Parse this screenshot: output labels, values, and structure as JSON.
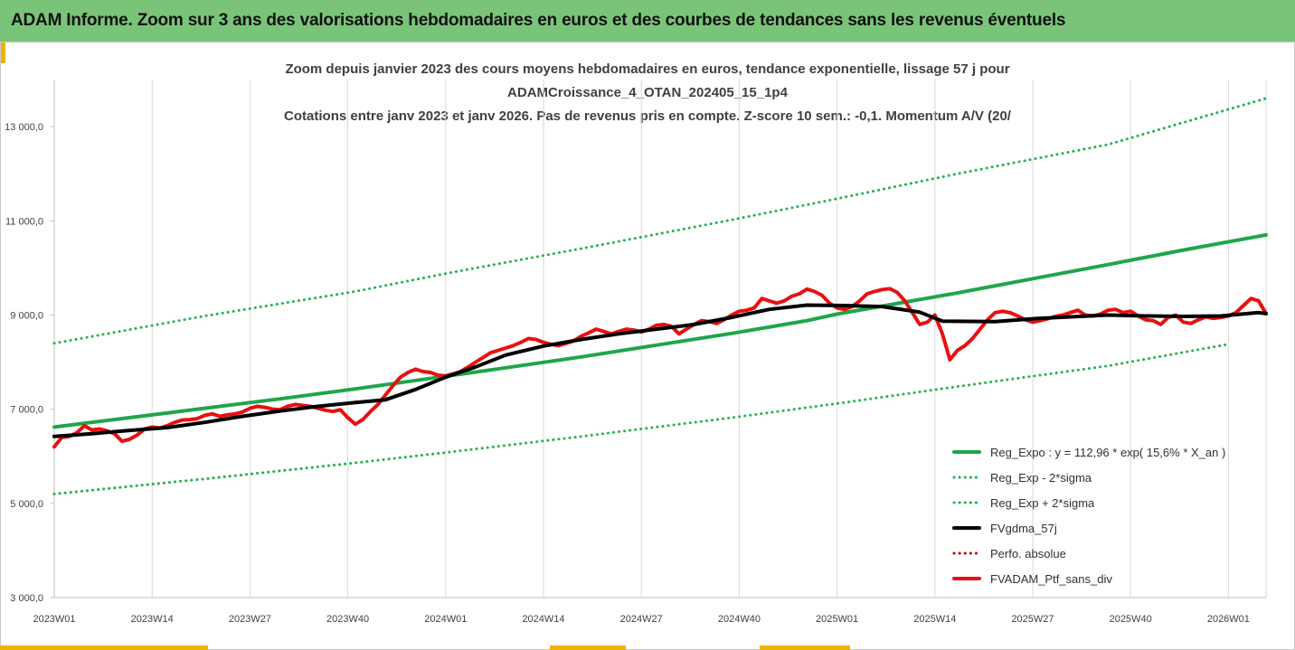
{
  "banner": {
    "title": "ADAM Informe. Zoom sur 3 ans des valorisations hebdomadaires en euros et des courbes de tendances sans les revenus éventuels"
  },
  "colors": {
    "banner_bg": "#7ac47a",
    "accent": "#f0b400",
    "reg_expo": "#1fa64a",
    "bands": "#22b050",
    "fvgdma": "#000000",
    "perfo": "#c00000",
    "fvadam": "#e81010"
  },
  "chart_data": {
    "type": "line",
    "title_lines": [
      "Zoom depuis janvier 2023 des cours moyens hebdomadaires  en euros, tendance exponentielle, lissage 57 j pour",
      "ADAMCroissance_4_OTAN_202405_15_1p4",
      "Cotations entre janv 2023 et janv 2026. Pas de revenus pris en compte. Z-score 10 sem.: -0,1. Momentum A/V (20/"
    ],
    "x_unit": "weeks since 2023W01",
    "x_range": [
      0,
      161
    ],
    "x_ticks": [
      {
        "x": 0,
        "label": "2023W01"
      },
      {
        "x": 13,
        "label": "2023W14"
      },
      {
        "x": 26,
        "label": "2023W27"
      },
      {
        "x": 39,
        "label": "2023W40"
      },
      {
        "x": 52,
        "label": "2024W01"
      },
      {
        "x": 65,
        "label": "2024W14"
      },
      {
        "x": 78,
        "label": "2024W27"
      },
      {
        "x": 91,
        "label": "2024W40"
      },
      {
        "x": 104,
        "label": "2025W01"
      },
      {
        "x": 117,
        "label": "2025W14"
      },
      {
        "x": 130,
        "label": "2025W27"
      },
      {
        "x": 143,
        "label": "2025W40"
      },
      {
        "x": 156,
        "label": "2026W01"
      }
    ],
    "y_ticks": [
      {
        "value": 3000,
        "label": "3 000,0"
      },
      {
        "value": 5000,
        "label": "5 000,0"
      },
      {
        "value": 7000,
        "label": "7 000,0"
      },
      {
        "value": 9000,
        "label": "9 000,0"
      },
      {
        "value": 11000,
        "label": "11 000,0"
      },
      {
        "value": 13000,
        "label": "13 000,0"
      }
    ],
    "ylim": [
      3000,
      14000
    ],
    "grid": "vertical",
    "legend_position": "bottom-right",
    "series": [
      {
        "name": "Reg_Expo : y = 112,96 * exp( 15,6% *  X_an )",
        "style": "solid",
        "color": "#1fa64a",
        "width": 4,
        "x": [
          0,
          10,
          20,
          30,
          40,
          52,
          60,
          70,
          80,
          90,
          100,
          104,
          110,
          120,
          130,
          140,
          150,
          161
        ],
        "y": [
          6620,
          6820,
          7020,
          7220,
          7430,
          7700,
          7880,
          8110,
          8360,
          8610,
          8880,
          9020,
          9190,
          9470,
          9770,
          10070,
          10380,
          10700
        ]
      },
      {
        "name": "Reg_Exp - 2*sigma",
        "style": "dotted",
        "color": "#22b050",
        "width": 3,
        "x": [
          0,
          20,
          40,
          52,
          70,
          90,
          104,
          120,
          140,
          156
        ],
        "y": [
          5200,
          5520,
          5860,
          6080,
          6420,
          6820,
          7120,
          7480,
          7920,
          8380
        ]
      },
      {
        "name": "Reg_Exp + 2*sigma",
        "style": "dotted",
        "color": "#22b050",
        "width": 3,
        "x": [
          0,
          20,
          40,
          52,
          70,
          90,
          104,
          120,
          140,
          161
        ],
        "y": [
          8400,
          8980,
          9500,
          9880,
          10410,
          11020,
          11470,
          12000,
          12620,
          13600
        ]
      },
      {
        "name": "FVgdma_57j",
        "style": "solid",
        "color": "#000000",
        "width": 4,
        "x": [
          0,
          5,
          10,
          15,
          20,
          25,
          30,
          35,
          40,
          44,
          48,
          52,
          56,
          60,
          65,
          70,
          75,
          80,
          85,
          90,
          95,
          100,
          105,
          110,
          115,
          118,
          125,
          130,
          135,
          140,
          145,
          150,
          155,
          160,
          161
        ],
        "y": [
          6420,
          6480,
          6550,
          6610,
          6720,
          6850,
          6960,
          7060,
          7140,
          7200,
          7420,
          7680,
          7900,
          8150,
          8340,
          8480,
          8600,
          8700,
          8800,
          8950,
          9120,
          9210,
          9200,
          9180,
          9060,
          8870,
          8860,
          8920,
          8960,
          9000,
          8980,
          8970,
          8980,
          9050,
          9030
        ]
      },
      {
        "name": "Perfo. absolue",
        "style": "dotted",
        "color": "#c00000",
        "width": 3,
        "x": [],
        "y": []
      },
      {
        "name": "FVADAM_Ptf_sans_div",
        "style": "solid",
        "color": "#e81010",
        "width": 4,
        "x": [
          0,
          1,
          2,
          3,
          4,
          5,
          6,
          7,
          8,
          9,
          10,
          11,
          12,
          13,
          14,
          15,
          16,
          17,
          18,
          19,
          20,
          21,
          22,
          23,
          24,
          25,
          26,
          27,
          28,
          29,
          30,
          31,
          32,
          33,
          34,
          35,
          36,
          37,
          38,
          39,
          40,
          41,
          42,
          43,
          44,
          45,
          46,
          47,
          48,
          49,
          50,
          51,
          52,
          53,
          54,
          55,
          56,
          57,
          58,
          59,
          60,
          61,
          62,
          63,
          64,
          65,
          66,
          67,
          68,
          69,
          70,
          71,
          72,
          73,
          74,
          75,
          76,
          77,
          78,
          79,
          80,
          81,
          82,
          83,
          84,
          85,
          86,
          87,
          88,
          89,
          90,
          91,
          92,
          93,
          94,
          95,
          96,
          97,
          98,
          99,
          100,
          101,
          102,
          103,
          104,
          105,
          106,
          107,
          108,
          109,
          110,
          111,
          112,
          113,
          114,
          115,
          116,
          117,
          118,
          119,
          120,
          121,
          122,
          123,
          124,
          125,
          126,
          127,
          128,
          129,
          130,
          131,
          132,
          133,
          134,
          135,
          136,
          137,
          138,
          139,
          140,
          141,
          142,
          143,
          144,
          145,
          146,
          147,
          148,
          149,
          150,
          151,
          152,
          153,
          154,
          155,
          156,
          157,
          158,
          159,
          160,
          161
        ],
        "y": [
          6200,
          6400,
          6420,
          6500,
          6650,
          6560,
          6580,
          6540,
          6480,
          6320,
          6360,
          6450,
          6580,
          6620,
          6600,
          6650,
          6720,
          6770,
          6780,
          6800,
          6870,
          6900,
          6850,
          6880,
          6900,
          6940,
          7020,
          7060,
          7040,
          7000,
          6990,
          7060,
          7100,
          7080,
          7060,
          7020,
          6980,
          6950,
          6990,
          6820,
          6680,
          6780,
          6950,
          7100,
          7300,
          7500,
          7680,
          7780,
          7850,
          7800,
          7780,
          7720,
          7710,
          7750,
          7800,
          7900,
          8000,
          8100,
          8200,
          8250,
          8300,
          8350,
          8420,
          8500,
          8480,
          8420,
          8380,
          8350,
          8400,
          8450,
          8550,
          8620,
          8700,
          8650,
          8600,
          8650,
          8700,
          8680,
          8640,
          8700,
          8780,
          8800,
          8760,
          8600,
          8700,
          8800,
          8880,
          8860,
          8820,
          8900,
          9000,
          9080,
          9100,
          9150,
          9350,
          9300,
          9250,
          9300,
          9400,
          9450,
          9550,
          9500,
          9420,
          9250,
          9150,
          9120,
          9180,
          9300,
          9450,
          9500,
          9540,
          9560,
          9480,
          9300,
          9050,
          8800,
          8850,
          9000,
          8600,
          8050,
          8250,
          8350,
          8500,
          8700,
          8900,
          9050,
          9080,
          9050,
          8980,
          8900,
          8850,
          8880,
          8920,
          8970,
          9000,
          9050,
          9100,
          9000,
          8980,
          9020,
          9100,
          9120,
          9050,
          9080,
          8980,
          8900,
          8880,
          8800,
          8950,
          9000,
          8850,
          8820,
          8900,
          8960,
          8930,
          8950,
          8980,
          9050,
          9200,
          9350,
          9300,
          9030
        ]
      }
    ],
    "legend": [
      {
        "label": "Reg_Expo : y = 112,96 * exp( 15,6% *  X_an )",
        "style": "solid",
        "color": "#1fa64a"
      },
      {
        "label": "Reg_Exp - 2*sigma",
        "style": "dotted",
        "color": "#22b050"
      },
      {
        "label": "Reg_Exp + 2*sigma",
        "style": "dotted",
        "color": "#22b050"
      },
      {
        "label": "FVgdma_57j",
        "style": "solid",
        "color": "#000000"
      },
      {
        "label": "Perfo. absolue",
        "style": "dotted",
        "color": "#c00000"
      },
      {
        "label": "FVADAM_Ptf_sans_div",
        "style": "solid",
        "color": "#e81010"
      }
    ]
  }
}
